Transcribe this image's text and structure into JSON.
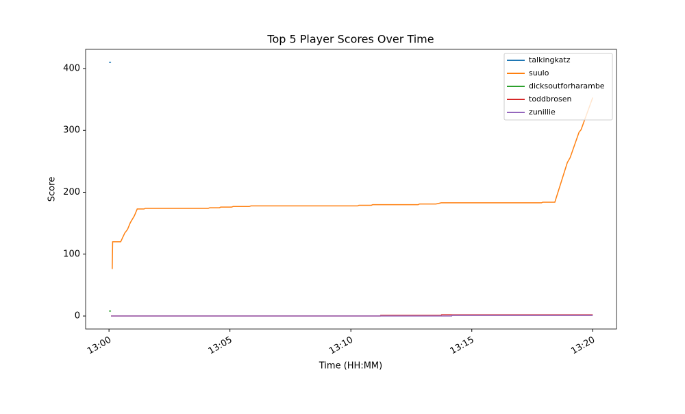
{
  "chart_data": {
    "type": "line",
    "title": "Top 5 Player Scores Over Time",
    "x_label": "Time (HH:MM)",
    "y_label": "Score",
    "xlim": [
      "12:59:02",
      "13:20:59"
    ],
    "xticks": [
      "13:00",
      "13:05",
      "13:10",
      "13:15",
      "13:20"
    ],
    "ylim": [
      -21,
      431
    ],
    "yticks": [
      0,
      100,
      200,
      300,
      400
    ],
    "legend": "upper right",
    "series": [
      {
        "name": "talkingkatz",
        "color": "#1f77b4",
        "x": [
          "13:00:00",
          "13:00:05"
        ],
        "values": [
          410,
          410
        ]
      },
      {
        "name": "suulo",
        "color": "#ff7f0e",
        "x": [
          "13:00:08",
          "13:00:09",
          "13:00:29",
          "13:00:39",
          "13:00:46",
          "13:00:53",
          "13:01:03",
          "13:01:10",
          "13:01:27",
          "13:01:30",
          "13:04:06",
          "13:04:10",
          "13:04:34",
          "13:04:37",
          "13:05:04",
          "13:05:08",
          "13:05:48",
          "13:05:52",
          "13:10:17",
          "13:10:20",
          "13:10:51",
          "13:10:54",
          "13:12:47",
          "13:12:50",
          "13:13:31",
          "13:13:38",
          "13:13:44",
          "13:17:53",
          "13:17:56",
          "13:18:26",
          "13:18:57",
          "13:19:04",
          "13:19:26",
          "13:19:31",
          "13:20:00"
        ],
        "values": [
          76,
          120,
          120,
          134,
          140,
          151,
          162,
          173,
          173,
          174,
          174,
          175,
          175,
          176,
          176,
          177,
          177,
          178,
          178,
          179,
          179,
          180,
          180,
          181,
          181,
          182,
          183,
          183,
          184,
          184,
          248,
          256,
          297,
          301,
          353
        ]
      },
      {
        "name": "dicksoutforharambe",
        "color": "#2ca02c",
        "x": [
          "13:00:00",
          "13:00:05"
        ],
        "values": [
          8,
          8
        ]
      },
      {
        "name": "toddbrosen",
        "color": "#d62728",
        "x": [
          "13:00:05",
          "13:11:13",
          "13:11:14",
          "13:13:44",
          "13:13:45",
          "13:20:00"
        ],
        "values": [
          0,
          0,
          1,
          1,
          2,
          2
        ]
      },
      {
        "name": "zunillie",
        "color": "#9467bd",
        "x": [
          "13:00:05",
          "13:14:10",
          "13:14:11",
          "13:20:00"
        ],
        "values": [
          0,
          0,
          1,
          1
        ]
      }
    ]
  }
}
